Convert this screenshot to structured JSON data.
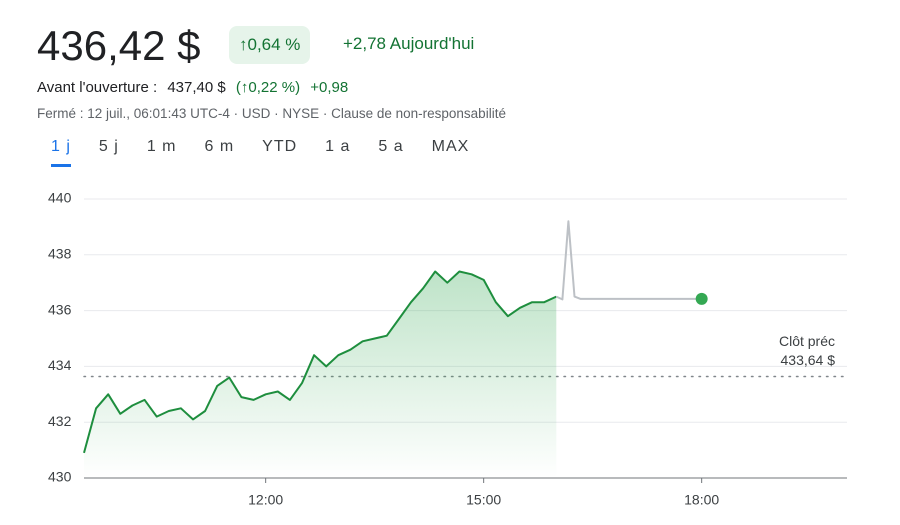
{
  "header": {
    "price": "436,42 $",
    "change_pct": "↑0,64 %",
    "change_abs": "+2,78 Aujourd'hui",
    "premarket_label": "Avant l'ouverture :",
    "premarket_price": "437,40 $",
    "premarket_pct": "(↑0,22 %)",
    "premarket_abs": "+0,98",
    "status": "Fermé : 12 juil., 06:01:43 UTC-4 · USD · NYSE · Clause de non-responsabilité"
  },
  "tabs": {
    "items": [
      "1 j",
      "5 j",
      "1 m",
      "6 m",
      "YTD",
      "1 a",
      "5 a",
      "MAX"
    ],
    "selected": 0
  },
  "chart_data": {
    "type": "line",
    "xlim": [
      570,
      1200
    ],
    "xticks": [
      {
        "value": 720,
        "label": "12:00"
      },
      {
        "value": 900,
        "label": "15:00"
      },
      {
        "value": 1080,
        "label": "18:00"
      }
    ],
    "ylim": [
      430,
      440
    ],
    "yticks": [
      430,
      432,
      434,
      436,
      438,
      440
    ],
    "grid": true,
    "series": [
      {
        "color": "#1e8e3e",
        "area": true,
        "x": [
          570,
          580,
          590,
          600,
          610,
          620,
          630,
          640,
          650,
          660,
          670,
          680,
          690,
          700,
          710,
          720,
          730,
          740,
          750,
          760,
          770,
          780,
          790,
          800,
          810,
          820,
          830,
          840,
          850,
          860,
          870,
          880,
          890,
          900,
          910,
          920,
          930,
          940,
          950,
          960
        ],
        "values": [
          430.9,
          432.5,
          433.0,
          432.3,
          432.6,
          432.8,
          432.2,
          432.4,
          432.5,
          432.1,
          432.4,
          433.3,
          433.6,
          432.9,
          432.8,
          433.0,
          433.1,
          432.8,
          433.4,
          434.4,
          434.0,
          434.4,
          434.6,
          434.9,
          435.0,
          435.1,
          435.7,
          436.3,
          436.8,
          437.4,
          437.0,
          437.4,
          437.3,
          437.1,
          436.3,
          435.8,
          436.1,
          436.3,
          436.3,
          436.5
        ]
      },
      {
        "color": "#bdc1c6",
        "area": false,
        "end_dot": "#34a853",
        "x": [
          960,
          965,
          970,
          975,
          980,
          1080
        ],
        "values": [
          436.5,
          436.4,
          439.2,
          436.5,
          436.42,
          436.42
        ]
      }
    ],
    "reference_line": {
      "label": "Clôt préc",
      "value": 433.64,
      "value_label": "433,64 $"
    }
  }
}
